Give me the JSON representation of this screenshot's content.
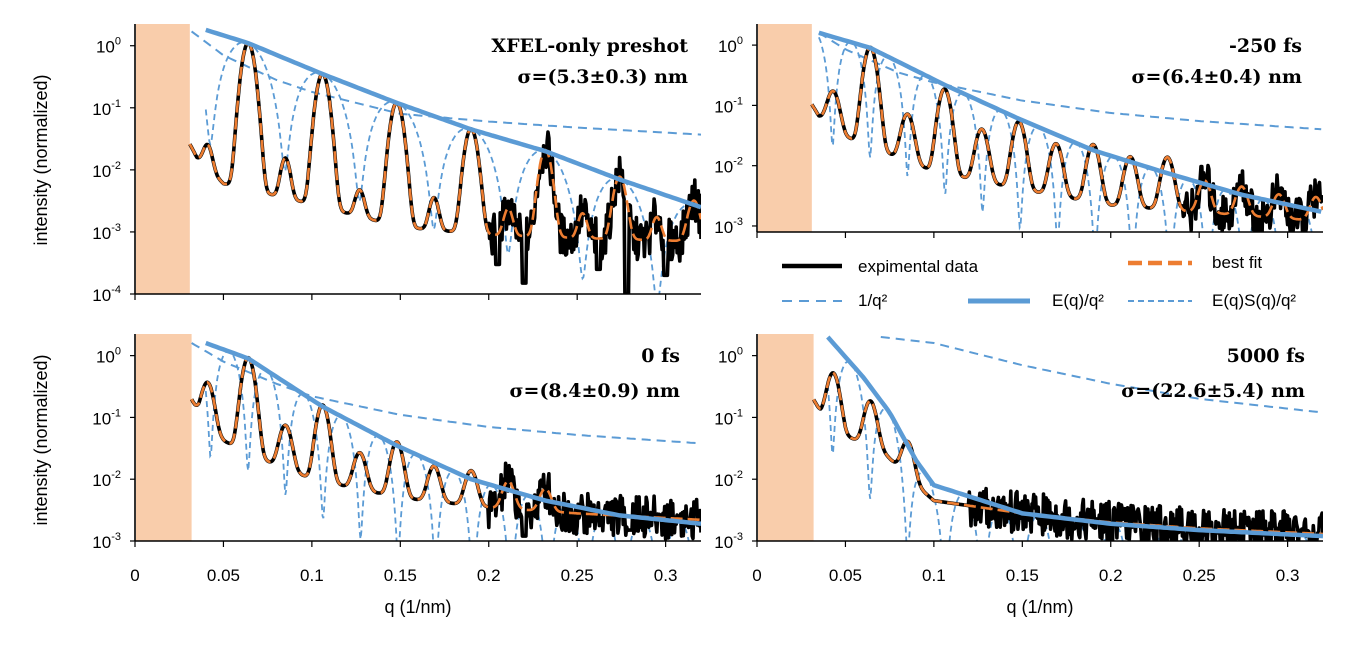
{
  "chart_data": [
    {
      "id": "preshot",
      "type": "line",
      "title": "XFEL-only preshot",
      "sigma_label": "σ=(5.3±0.3) nm",
      "xlabel": "q (1/nm)",
      "ylabel": "intensity (normalized)",
      "xlim": [
        0,
        0.32
      ],
      "ylim_exp": [
        -4,
        0.35
      ],
      "y_log": true,
      "masked_q_range": [
        0,
        0.031
      ],
      "sigma_nm": 5.3,
      "shell_period": 0.0421,
      "shell_offset": 0.0005,
      "peaks": [
        [
          0.064,
          1.1
        ],
        [
          0.106,
          0.35
        ],
        [
          0.148,
          0.12
        ],
        [
          0.19,
          0.045
        ],
        [
          0.232,
          0.02
        ],
        [
          0.274,
          0.007
        ],
        [
          0.316,
          0.0025
        ]
      ],
      "minor_peaks": [
        [
          0.041,
          0.015
        ],
        [
          0.085,
          0.012
        ],
        [
          0.127,
          0.003
        ],
        [
          0.169,
          0.0025
        ],
        [
          0.211,
          0.0015
        ],
        [
          0.253,
          0.0012
        ],
        [
          0.295,
          0.001
        ]
      ],
      "baseline": [
        [
          0.031,
          0.02
        ],
        [
          0.05,
          0.006
        ],
        [
          0.1,
          0.0028
        ],
        [
          0.15,
          0.0012
        ],
        [
          0.2,
          0.0009
        ],
        [
          0.25,
          0.0008
        ],
        [
          0.32,
          0.0007
        ]
      ],
      "noise_from_q": 0.2,
      "noise_dips": [
        [
          0.205,
          0.0003
        ],
        [
          0.22,
          0.00015
        ],
        [
          0.262,
          0.00025
        ],
        [
          0.278,
          0.0001
        ],
        [
          0.3,
          0.0002
        ]
      ],
      "reference_1_over_q2": [
        [
          0.032,
          1.7
        ],
        [
          0.05,
          0.7
        ],
        [
          0.08,
          0.28
        ],
        [
          0.1,
          0.18
        ],
        [
          0.15,
          0.08
        ],
        [
          0.2,
          0.06
        ],
        [
          0.25,
          0.048
        ],
        [
          0.32,
          0.037
        ]
      ],
      "envelope_E_over_q2": [
        [
          0.04,
          1.8
        ],
        [
          0.064,
          1.1
        ],
        [
          0.106,
          0.35
        ],
        [
          0.148,
          0.12
        ],
        [
          0.19,
          0.045
        ],
        [
          0.232,
          0.02
        ],
        [
          0.274,
          0.007
        ],
        [
          0.32,
          0.0025
        ]
      ]
    },
    {
      "id": "minus250",
      "type": "line",
      "title": "-250 fs",
      "sigma_label": "σ=(6.4±0.4) nm",
      "xlabel": "",
      "ylabel": "",
      "xlim": [
        0,
        0.32
      ],
      "ylim_exp": [
        -3.1,
        0.35
      ],
      "y_log": true,
      "masked_q_range": [
        0,
        0.031
      ],
      "sigma_nm": 6.4,
      "shell_period": 0.0212,
      "shell_offset": 0.0215,
      "peaks": [
        [
          0.043,
          0.13
        ],
        [
          0.064,
          0.9
        ],
        [
          0.085,
          0.06
        ],
        [
          0.106,
          0.18
        ],
        [
          0.127,
          0.035
        ],
        [
          0.148,
          0.05
        ],
        [
          0.169,
          0.02
        ],
        [
          0.19,
          0.02
        ],
        [
          0.211,
          0.012
        ],
        [
          0.232,
          0.012
        ],
        [
          0.253,
          0.004
        ],
        [
          0.274,
          0.003
        ],
        [
          0.295,
          0.002
        ],
        [
          0.316,
          0.0018
        ]
      ],
      "minor_peaks": [],
      "baseline": [
        [
          0.031,
          0.08
        ],
        [
          0.05,
          0.03
        ],
        [
          0.1,
          0.008
        ],
        [
          0.15,
          0.004
        ],
        [
          0.2,
          0.0022
        ],
        [
          0.25,
          0.0017
        ],
        [
          0.32,
          0.0012
        ]
      ],
      "noise_from_q": 0.24,
      "noise_dips": [],
      "reference_1_over_q2": [
        [
          0.035,
          1.6
        ],
        [
          0.05,
          0.85
        ],
        [
          0.08,
          0.35
        ],
        [
          0.1,
          0.24
        ],
        [
          0.15,
          0.12
        ],
        [
          0.2,
          0.075
        ],
        [
          0.25,
          0.055
        ],
        [
          0.32,
          0.04
        ]
      ],
      "envelope_E_over_q2": [
        [
          0.035,
          1.6
        ],
        [
          0.064,
          0.9
        ],
        [
          0.106,
          0.22
        ],
        [
          0.148,
          0.06
        ],
        [
          0.19,
          0.018
        ],
        [
          0.232,
          0.0075
        ],
        [
          0.274,
          0.0033
        ],
        [
          0.32,
          0.0017
        ]
      ]
    },
    {
      "id": "zero",
      "type": "line",
      "title": "0 fs",
      "sigma_label": "σ=(8.4±0.9) nm",
      "xlabel": "q (1/nm)",
      "ylabel": "intensity (normalized)",
      "xlim": [
        0,
        0.32
      ],
      "ylim_exp": [
        -3,
        0.35
      ],
      "y_log": true,
      "masked_q_range": [
        0,
        0.032
      ],
      "sigma_nm": 8.4,
      "shell_period": 0.0212,
      "shell_offset": 0.0215,
      "peaks": [
        [
          0.041,
          0.3
        ],
        [
          0.064,
          0.9
        ],
        [
          0.085,
          0.06
        ],
        [
          0.106,
          0.15
        ],
        [
          0.127,
          0.02
        ],
        [
          0.148,
          0.035
        ],
        [
          0.169,
          0.012
        ],
        [
          0.19,
          0.01
        ],
        [
          0.211,
          0.006
        ],
        [
          0.232,
          0.004
        ]
      ],
      "minor_peaks": [],
      "baseline": [
        [
          0.032,
          0.15
        ],
        [
          0.045,
          0.05
        ],
        [
          0.065,
          0.025
        ],
        [
          0.1,
          0.01
        ],
        [
          0.15,
          0.005
        ],
        [
          0.2,
          0.0035
        ],
        [
          0.25,
          0.0028
        ],
        [
          0.32,
          0.0022
        ]
      ],
      "noise_from_q": 0.2,
      "noise_dips": [
        [
          0.22,
          0.0012
        ],
        [
          0.28,
          0.0015
        ]
      ],
      "reference_1_over_q2": [
        [
          0.032,
          1.6
        ],
        [
          0.05,
          0.8
        ],
        [
          0.08,
          0.35
        ],
        [
          0.1,
          0.22
        ],
        [
          0.15,
          0.11
        ],
        [
          0.2,
          0.07
        ],
        [
          0.25,
          0.052
        ],
        [
          0.32,
          0.038
        ]
      ],
      "envelope_E_over_q2": [
        [
          0.04,
          1.6
        ],
        [
          0.064,
          0.9
        ],
        [
          0.106,
          0.15
        ],
        [
          0.148,
          0.035
        ],
        [
          0.19,
          0.01
        ],
        [
          0.232,
          0.0045
        ],
        [
          0.274,
          0.0026
        ],
        [
          0.32,
          0.0019
        ]
      ]
    },
    {
      "id": "plus5000",
      "type": "line",
      "title": "5000 fs",
      "sigma_label": "σ=(22.6±5.4) nm",
      "xlabel": "q (1/nm)",
      "ylabel": "",
      "xlim": [
        0,
        0.32
      ],
      "ylim_exp": [
        -3,
        0.35
      ],
      "y_log": true,
      "masked_q_range": [
        0,
        0.032
      ],
      "sigma_nm": 22.6,
      "shell_period": 0.0212,
      "shell_offset": 0.0215,
      "peaks": [
        [
          0.043,
          0.45
        ],
        [
          0.064,
          0.15
        ],
        [
          0.085,
          0.03
        ]
      ],
      "minor_peaks": [],
      "baseline": [
        [
          0.032,
          0.15
        ],
        [
          0.05,
          0.05
        ],
        [
          0.07,
          0.03
        ],
        [
          0.09,
          0.008
        ],
        [
          0.1,
          0.0045
        ],
        [
          0.15,
          0.0028
        ],
        [
          0.2,
          0.002
        ],
        [
          0.25,
          0.0016
        ],
        [
          0.32,
          0.0013
        ]
      ],
      "noise_from_q": 0.12,
      "noise_dips": [],
      "reference_1_over_q2": [
        [
          0.07,
          2.0
        ],
        [
          0.1,
          1.6
        ],
        [
          0.15,
          0.7
        ],
        [
          0.2,
          0.35
        ],
        [
          0.25,
          0.2
        ],
        [
          0.32,
          0.12
        ]
      ],
      "envelope_E_over_q2": [
        [
          0.04,
          2.0
        ],
        [
          0.06,
          0.45
        ],
        [
          0.075,
          0.12
        ],
        [
          0.09,
          0.02
        ],
        [
          0.1,
          0.008
        ],
        [
          0.15,
          0.0028
        ],
        [
          0.2,
          0.0019
        ],
        [
          0.25,
          0.0015
        ],
        [
          0.32,
          0.0012
        ]
      ]
    }
  ],
  "legend": {
    "items": [
      {
        "label": "expimental data"
      },
      {
        "label": "best fit"
      },
      {
        "label": "1/q²"
      },
      {
        "label": "E(q)/q²"
      },
      {
        "label": "E(q)S(q)/q²"
      }
    ]
  },
  "x_ticks": [
    "0",
    "0.05",
    "0.1",
    "0.15",
    "0.2",
    "0.25",
    "0.3"
  ],
  "x_tick_values": [
    0,
    0.05,
    0.1,
    0.15,
    0.2,
    0.25,
    0.3
  ],
  "y_tick_exponents": {
    "preshot": [
      "0",
      "-1",
      "-2",
      "-3",
      "-4"
    ],
    "minus250": [
      "0",
      "-1",
      "-2",
      "-3"
    ],
    "zero": [
      "0",
      "-1",
      "-2",
      "-3"
    ],
    "plus5000": [
      "0",
      "-1",
      "-2",
      "-3"
    ]
  },
  "y_tick_base": "10",
  "colors": {
    "data": "#000000",
    "fit": "#ed7d31",
    "reference": "#5b9bd5",
    "mask": "#f9cdab"
  }
}
